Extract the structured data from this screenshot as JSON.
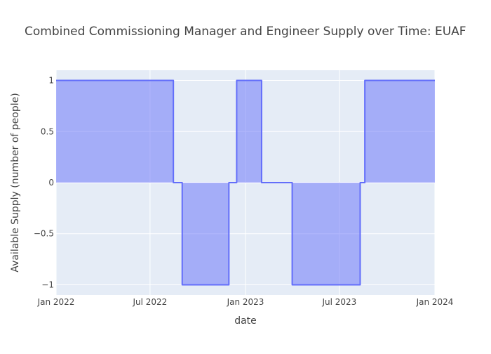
{
  "chart_data": {
    "type": "area",
    "title": "Combined Commissioning Manager and Engineer Supply over Time: EUAF",
    "xlabel": "date",
    "ylabel": "Available Supply (number of people)",
    "xlim": [
      "2022-01-01",
      "2024-01-01"
    ],
    "ylim": [
      -1.1,
      1.1
    ],
    "x_ticks": [
      {
        "value": "2022-01-01",
        "label": "Jan 2022"
      },
      {
        "value": "2022-07-01",
        "label": "Jul 2022"
      },
      {
        "value": "2023-01-01",
        "label": "Jan 2023"
      },
      {
        "value": "2023-07-01",
        "label": "Jul 2023"
      },
      {
        "value": "2024-01-01",
        "label": "Jan 2024"
      }
    ],
    "y_ticks": [
      {
        "value": 1,
        "label": "1"
      },
      {
        "value": 0.5,
        "label": "0.5"
      },
      {
        "value": 0,
        "label": "0"
      },
      {
        "value": -0.5,
        "label": "−0.5"
      },
      {
        "value": -1,
        "label": "−1"
      }
    ],
    "grid": true,
    "legend": "none",
    "series": [
      {
        "x": [
          "2022-01-01",
          "2022-08-15",
          "2022-08-15",
          "2022-09-01",
          "2022-09-01",
          "2022-11-30",
          "2022-11-30",
          "2022-12-15",
          "2022-12-15",
          "2023-02-01",
          "2023-02-01",
          "2023-04-01",
          "2023-04-01",
          "2023-08-10",
          "2023-08-10",
          "2023-08-19",
          "2023-08-19",
          "2024-01-01"
        ],
        "y": [
          1,
          1,
          0,
          0,
          -1,
          -1,
          0,
          0,
          1,
          1,
          0,
          0,
          -1,
          -1,
          0,
          0,
          1,
          1
        ]
      }
    ],
    "colors": {
      "plot_bg": "#e5ecf6",
      "grid": "#ffffff",
      "line": "#636efa",
      "fill": "rgba(99,110,250,0.5)"
    }
  }
}
